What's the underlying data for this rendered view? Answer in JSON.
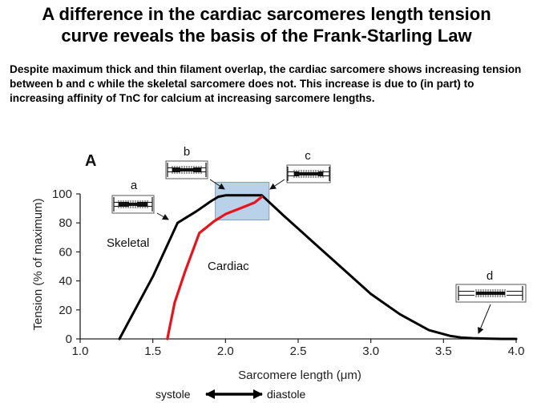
{
  "page": {
    "title_line1": "A difference in the cardiac sarcomeres length tension",
    "title_line2": "curve reveals the basis of the Frank-Starling Law",
    "description": "Despite maximum thick and thin filament overlap, the cardiac sarcomere shows increasing tension between b and c while the skeletal sarcomere does not. This increase is due to (in part) to increasing affinity of TnC for calcium at increasing sarcomere lengths."
  },
  "colors": {
    "skeletal": "#000000",
    "cardiac": "#e8141c",
    "highlight": "#a9c7e3"
  },
  "chart_data": {
    "type": "line",
    "panel_label": "A",
    "xlabel": "Sarcomere length (μm)",
    "ylabel": "Tension (% of maximum)",
    "xlim": [
      1.0,
      4.0
    ],
    "ylim": [
      0,
      100
    ],
    "xticks": [
      "1.0",
      "1.5",
      "2.0",
      "2.5",
      "3.0",
      "3.5",
      "4.0"
    ],
    "xtick_values": [
      1.0,
      1.5,
      2.0,
      2.5,
      3.0,
      3.5,
      4.0
    ],
    "yticks": [
      "0",
      "20",
      "40",
      "60",
      "80",
      "100"
    ],
    "ytick_values": [
      0,
      20,
      40,
      60,
      80,
      100
    ],
    "series": [
      {
        "name": "Skeletal",
        "x": [
          1.27,
          1.5,
          1.67,
          1.8,
          1.9,
          1.95,
          2.0,
          2.1,
          2.2,
          2.25,
          2.4,
          2.6,
          2.8,
          3.0,
          3.2,
          3.4,
          3.55,
          3.62,
          3.7,
          3.8,
          3.9,
          4.0
        ],
        "y": [
          0,
          43,
          80,
          88,
          95,
          98,
          99,
          99,
          99,
          99,
          85,
          67,
          49,
          31,
          17,
          6,
          2,
          1,
          0.5,
          0.2,
          0,
          0
        ]
      },
      {
        "name": "Cardiac",
        "x": [
          1.6,
          1.65,
          1.72,
          1.82,
          1.92,
          2.0,
          2.1,
          2.2,
          2.25
        ],
        "y": [
          0,
          25,
          46,
          73,
          81,
          86,
          90,
          94,
          98
        ]
      }
    ],
    "highlight_region": {
      "x": [
        1.93,
        2.3
      ],
      "y": [
        82,
        108
      ]
    },
    "annotations": [
      {
        "label": "a",
        "x": 1.6,
        "y": 89
      },
      {
        "label": "b",
        "x": 1.85,
        "y": 117
      },
      {
        "label": "c",
        "x": 2.55,
        "y": 111
      },
      {
        "label": "d",
        "x": 3.82,
        "y": 33
      }
    ],
    "series_labels": {
      "skeletal": "Skeletal",
      "cardiac": "Cardiac"
    },
    "phase_axis": {
      "left": "systole",
      "right": "diastole"
    }
  }
}
